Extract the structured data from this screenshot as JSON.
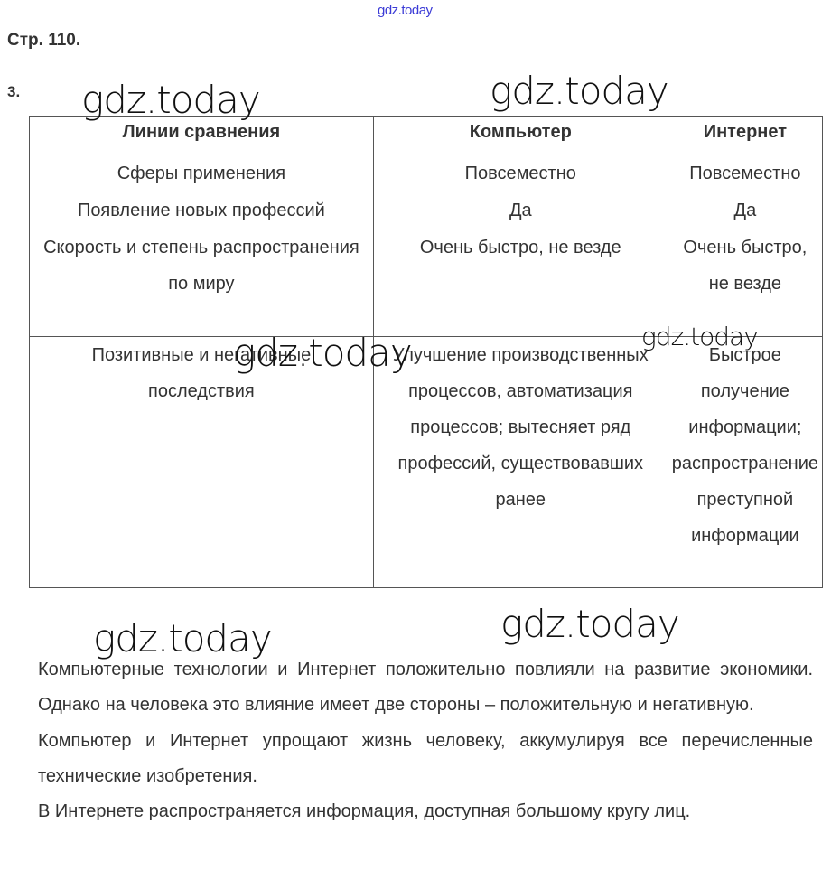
{
  "watermark_top": "gdz.today",
  "watermarks": [
    "gdz.today",
    "gdz.today",
    "gdz.today",
    "gdz.today",
    "gdz.today",
    "gdz.today"
  ],
  "page_label": "Стр. 110.",
  "task_number": "3.",
  "table": {
    "headers": [
      "Линии сравнения",
      "Компьютер",
      "Интернет"
    ],
    "rows": [
      [
        "Сферы применения",
        "Повсеместно",
        "Повсеместно"
      ],
      [
        "Появление новых профессий",
        "Да",
        "Да"
      ],
      [
        "Скорость и степень распространения по миру",
        "Очень быстро, не везде",
        "Очень быстро, не везде"
      ],
      [
        "Позитивные и негативные последствия",
        "Улучшение производственных процессов, автоматизация процессов; вытесняет ряд профессий, существовавших ранее",
        "Быстрое получение информации; распространение преступной информации"
      ]
    ]
  },
  "paragraphs": [
    "Компьютерные технологии и Интернет положительно повлияли на развитие экономики. Однако на человека это влияние имеет две стороны – положительную и негативную.",
    "Компьютер и Интернет упрощают жизнь человеку, аккумулируя все перечисленные технические изобретения.",
    "В Интернете распространяется информация, доступная большому кругу лиц."
  ]
}
